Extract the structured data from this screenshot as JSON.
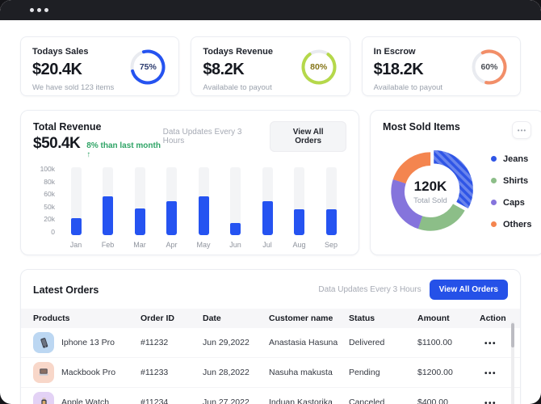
{
  "titlebar": {
    "controls": "window-dots"
  },
  "stat_cards": [
    {
      "title": "Todays Sales",
      "value": "$20.4K",
      "caption": "We have sold 123 items",
      "percent": 75,
      "percent_label": "75%",
      "ring_color": "#2553f0",
      "ring_track": "#e9ebf0",
      "label_color": "#2b3a6e",
      "start_deg": 345
    },
    {
      "title": "Todays Revenue",
      "value": "$8.2K",
      "caption": "Availabale to payout",
      "percent": 80,
      "percent_label": "80%",
      "ring_color": "#b5d84a",
      "ring_track": "#e9ebf0",
      "label_color": "#857518",
      "start_deg": 36
    },
    {
      "title": "In Escrow",
      "value": "$18.2K",
      "caption": "Availabale to payout",
      "percent": 60,
      "percent_label": "60%",
      "ring_color": "#f28e68",
      "ring_track": "#e9ebf0",
      "label_color": "#4b4f56",
      "start_deg": 335
    }
  ],
  "revenue_panel": {
    "title": "Total Revenue",
    "total": "$50.4K",
    "delta": "8% than last month ↑",
    "updates_note": "Data Updates Every 3 Hours",
    "view_all_label": "View All Orders",
    "chart_data": {
      "type": "bar",
      "categories": [
        "Jan",
        "Feb",
        "Mar",
        "Apr",
        "May",
        "Jun",
        "Jul",
        "Aug",
        "Sep"
      ],
      "values": [
        26000,
        60000,
        41000,
        52000,
        60000,
        19000,
        52000,
        40000,
        40000
      ],
      "y_ticks": [
        "100k",
        "80k",
        "60k",
        "50k",
        "20k",
        "0"
      ],
      "ylim": [
        0,
        105000
      ],
      "bar_color": "#2553f1",
      "track_color": "#f3f4f6",
      "grid": false,
      "legend": false
    }
  },
  "most_sold": {
    "title": "Most Sold Items",
    "menu_label": "•••",
    "chart_data": {
      "type": "pie",
      "center_value": "120K",
      "center_label": "Total Sold",
      "legend_position": "right",
      "segments": [
        {
          "label": "Jeans",
          "percent": 33,
          "color": "#2f55e6",
          "striped": true,
          "exploded": true
        },
        {
          "label": "Shirts",
          "percent": 22,
          "color": "#8cbe88"
        },
        {
          "label": "Caps",
          "percent": 25,
          "color": "#8574dc"
        },
        {
          "label": "Others",
          "percent": 20,
          "color": "#f4854f"
        }
      ]
    }
  },
  "orders": {
    "title": "Latest Orders",
    "updates_note": "Data Updates Every 3 Hours",
    "view_all_label": "View All Orders",
    "columns": [
      "Products",
      "Order ID",
      "Date",
      "Customer name",
      "Status",
      "Amount",
      "Action"
    ],
    "action_label": "•••",
    "rows": [
      {
        "product": "Iphone 13 Pro",
        "icon": "iphone-icon",
        "icon_bg": "#bcd7f2",
        "order_id": "#11232",
        "date": "Jun 29,2022",
        "customer": "Anastasia Hasuna",
        "status": "Delivered",
        "amount": "$1100.00"
      },
      {
        "product": "Mackbook Pro",
        "icon": "laptop-icon",
        "icon_bg": "#f8d7c9",
        "order_id": "#11233",
        "date": "Jun 28,2022",
        "customer": "Nasuha makusta",
        "status": "Pending",
        "amount": "$1200.00"
      },
      {
        "product": "Apple Watch",
        "icon": "watch-icon",
        "icon_bg": "#e3d2f5",
        "order_id": "#11234",
        "date": "Jun 27,2022",
        "customer": "Induan Kastorika",
        "status": "Canceled",
        "amount": "$400.00"
      }
    ]
  }
}
